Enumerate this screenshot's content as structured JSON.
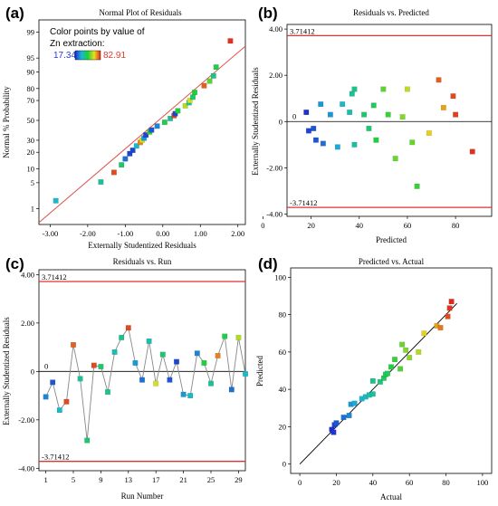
{
  "panel_labels": [
    "(a)",
    "(b)",
    "(c)",
    "(d)"
  ],
  "legend": {
    "line1": "Color points by value of",
    "line2": "Zn extraction:",
    "min_label": "17.34",
    "max_label": "82.91",
    "min_color": "#2b3bd6",
    "max_color": "#e03a2c"
  },
  "colors": {
    "ref_line": "#e0504a",
    "limit_line": "#dd3333",
    "fit_line": "#000000",
    "trace_line": "#888888"
  },
  "chart_data": [
    {
      "id": "a",
      "type": "scatter",
      "title": "Normal Plot of Residuals",
      "xlabel": "Externally Studentized Residuals",
      "ylabel": "Normal % Probability",
      "xlim": [
        -3.3,
        2.2
      ],
      "xticks": [
        "-3.00",
        "-2.00",
        "-1.00",
        "0.00",
        "1.00",
        "2.00"
      ],
      "xtick_values": [
        -3,
        -2,
        -1,
        0,
        1,
        2
      ],
      "ylim": [
        0.3,
        99.6
      ],
      "yticks": [
        "1",
        "5",
        "10",
        "20",
        "30",
        "50",
        "70",
        "80",
        "90",
        "95",
        "99"
      ],
      "ytick_values": [
        1,
        5,
        10,
        20,
        30,
        50,
        70,
        80,
        90,
        95,
        99
      ],
      "ref_line": [
        [
          -3.3,
          0.35
        ],
        [
          2.2,
          97.5
        ]
      ],
      "points": [
        [
          -2.85,
          1.7,
          35
        ],
        [
          -1.65,
          5.2,
          40
        ],
        [
          -1.3,
          8.5,
          80
        ],
        [
          -1.1,
          12,
          45
        ],
        [
          -1.0,
          15.5,
          25
        ],
        [
          -0.88,
          19,
          20
        ],
        [
          -0.8,
          21.5,
          20
        ],
        [
          -0.7,
          25,
          35
        ],
        [
          -0.6,
          28,
          75
        ],
        [
          -0.55,
          30,
          65
        ],
        [
          -0.5,
          32,
          30
        ],
        [
          -0.45,
          35,
          20
        ],
        [
          -0.35,
          38,
          52
        ],
        [
          -0.3,
          40,
          22
        ],
        [
          -0.15,
          44,
          28
        ],
        [
          0.05,
          48,
          48
        ],
        [
          0.2,
          52,
          40
        ],
        [
          0.3,
          55,
          80
        ],
        [
          0.33,
          57,
          20
        ],
        [
          0.4,
          60,
          50
        ],
        [
          0.6,
          65,
          62
        ],
        [
          0.7,
          68,
          40
        ],
        [
          0.72,
          70,
          65
        ],
        [
          0.8,
          73,
          45
        ],
        [
          0.85,
          77,
          50
        ],
        [
          1.1,
          82,
          78
        ],
        [
          1.25,
          85,
          55
        ],
        [
          1.35,
          88,
          42
        ],
        [
          1.42,
          92,
          48
        ],
        [
          1.8,
          98.2,
          82
        ]
      ]
    },
    {
      "id": "b",
      "type": "scatter",
      "title": "Residuals vs. Predicted",
      "xlabel": "Predicted",
      "ylabel": "Externally Studentized Residuals",
      "xlim": [
        10,
        95
      ],
      "xticks": [
        "0",
        "20",
        "40",
        "60",
        "80"
      ],
      "xtick_values": [
        0,
        20,
        40,
        60,
        80
      ],
      "ylim": [
        -4.1,
        4.2
      ],
      "yticks": [
        "-4.00",
        "-2.00",
        "0",
        "2.00",
        "4.00"
      ],
      "ytick_values": [
        -4,
        -2,
        0,
        2,
        4
      ],
      "limits": [
        3.71412,
        -3.71412
      ],
      "limit_labels": [
        "3.71412",
        "-3.71412"
      ],
      "zero_label": "0",
      "points": [
        [
          18,
          0.4,
          17
        ],
        [
          19,
          -0.4,
          20
        ],
        [
          21,
          -0.3,
          22
        ],
        [
          22,
          -0.8,
          22
        ],
        [
          24,
          0.75,
          30
        ],
        [
          25,
          -0.95,
          25
        ],
        [
          28,
          0.3,
          30
        ],
        [
          31,
          -1.1,
          32
        ],
        [
          33,
          0.75,
          35
        ],
        [
          36,
          0.4,
          38
        ],
        [
          37,
          1.2,
          40
        ],
        [
          38,
          1.4,
          42
        ],
        [
          38,
          -1.0,
          39
        ],
        [
          42,
          0.3,
          45
        ],
        [
          44,
          -0.3,
          44
        ],
        [
          46,
          0.7,
          47
        ],
        [
          47,
          -0.8,
          50
        ],
        [
          50,
          1.4,
          55
        ],
        [
          52,
          0.3,
          52
        ],
        [
          55,
          -1.6,
          56
        ],
        [
          58,
          0.2,
          58
        ],
        [
          60,
          1.4,
          63
        ],
        [
          62,
          -0.9,
          56
        ],
        [
          64,
          -2.8,
          52
        ],
        [
          69,
          -0.5,
          68
        ],
        [
          73,
          1.8,
          78
        ],
        [
          75,
          0.6,
          72
        ],
        [
          79,
          1.1,
          80
        ],
        [
          80,
          0.3,
          81
        ],
        [
          87,
          -1.3,
          82
        ]
      ]
    },
    {
      "id": "c",
      "type": "line",
      "title": "Residuals vs. Run",
      "xlabel": "Run Number",
      "ylabel": "Externally Studentized Residuals",
      "xlim": [
        0,
        30
      ],
      "xticks": [
        "1",
        "5",
        "9",
        "13",
        "17",
        "21",
        "25",
        "29"
      ],
      "xtick_values": [
        1,
        5,
        9,
        13,
        17,
        21,
        25,
        29
      ],
      "ylim": [
        -4.1,
        4.2
      ],
      "yticks": [
        "-4.00",
        "-2.00",
        "0",
        "2.00",
        "4.00"
      ],
      "ytick_values": [
        -4,
        -2,
        0,
        2,
        4
      ],
      "limits": [
        3.71412,
        -3.71412
      ],
      "limit_labels": [
        "3.71412",
        "-3.71412"
      ],
      "zero_label": "0",
      "points": [
        [
          1,
          -1.05,
          28
        ],
        [
          2,
          -0.45,
          22
        ],
        [
          3,
          -1.6,
          35
        ],
        [
          4,
          -1.25,
          80
        ],
        [
          5,
          1.1,
          78
        ],
        [
          6,
          -0.3,
          40
        ],
        [
          7,
          -2.85,
          45
        ],
        [
          8,
          0.25,
          80
        ],
        [
          9,
          0.2,
          45
        ],
        [
          10,
          -0.85,
          42
        ],
        [
          11,
          0.8,
          38
        ],
        [
          12,
          1.4,
          42
        ],
        [
          13,
          1.8,
          80
        ],
        [
          14,
          0.35,
          30
        ],
        [
          15,
          -0.35,
          25
        ],
        [
          16,
          1.25,
          38
        ],
        [
          17,
          -0.5,
          65
        ],
        [
          18,
          0.7,
          45
        ],
        [
          19,
          -0.35,
          22
        ],
        [
          20,
          0.4,
          20
        ],
        [
          21,
          -0.95,
          30
        ],
        [
          22,
          -1.0,
          35
        ],
        [
          23,
          0.75,
          28
        ],
        [
          24,
          0.35,
          50
        ],
        [
          25,
          -0.5,
          40
        ],
        [
          26,
          0.65,
          75
        ],
        [
          27,
          1.45,
          48
        ],
        [
          28,
          -0.75,
          25
        ],
        [
          29,
          1.4,
          62
        ],
        [
          30,
          -0.1,
          35
        ]
      ]
    },
    {
      "id": "d",
      "type": "scatter",
      "title": "Predicted vs. Actual",
      "xlabel": "Actual",
      "ylabel": "Predicted",
      "xlim": [
        -5,
        105
      ],
      "xticks": [
        "0",
        "20",
        "40",
        "60",
        "80",
        "100"
      ],
      "xtick_values": [
        0,
        20,
        40,
        60,
        80,
        100
      ],
      "ylim": [
        -5,
        105
      ],
      "yticks": [
        "0",
        "20",
        "40",
        "60",
        "80",
        "100"
      ],
      "ytick_values": [
        0,
        20,
        40,
        60,
        80,
        100
      ],
      "fit_line": [
        [
          0,
          0
        ],
        [
          86,
          86
        ]
      ],
      "points": [
        [
          17.5,
          18.5,
          17
        ],
        [
          18.5,
          17,
          18
        ],
        [
          19,
          21,
          20
        ],
        [
          20,
          22,
          22
        ],
        [
          24,
          25,
          25
        ],
        [
          27,
          26,
          28
        ],
        [
          28,
          32,
          30
        ],
        [
          30,
          32.5,
          32
        ],
        [
          34,
          35,
          34
        ],
        [
          36,
          36,
          36
        ],
        [
          38,
          37,
          38
        ],
        [
          40,
          37.5,
          40
        ],
        [
          40,
          44.5,
          42
        ],
        [
          44,
          44,
          44
        ],
        [
          46,
          46,
          46
        ],
        [
          47,
          48,
          47
        ],
        [
          48,
          48.5,
          48
        ],
        [
          50,
          52,
          50
        ],
        [
          52,
          56,
          52
        ],
        [
          55,
          51,
          54
        ],
        [
          56,
          64,
          56
        ],
        [
          58,
          61,
          58
        ],
        [
          60,
          57,
          59
        ],
        [
          65,
          60,
          62
        ],
        [
          68,
          70,
          68
        ],
        [
          75,
          74,
          72
        ],
        [
          77,
          73,
          76
        ],
        [
          81,
          79,
          80
        ],
        [
          82,
          83.5,
          82
        ],
        [
          83,
          87,
          83
        ]
      ]
    }
  ]
}
